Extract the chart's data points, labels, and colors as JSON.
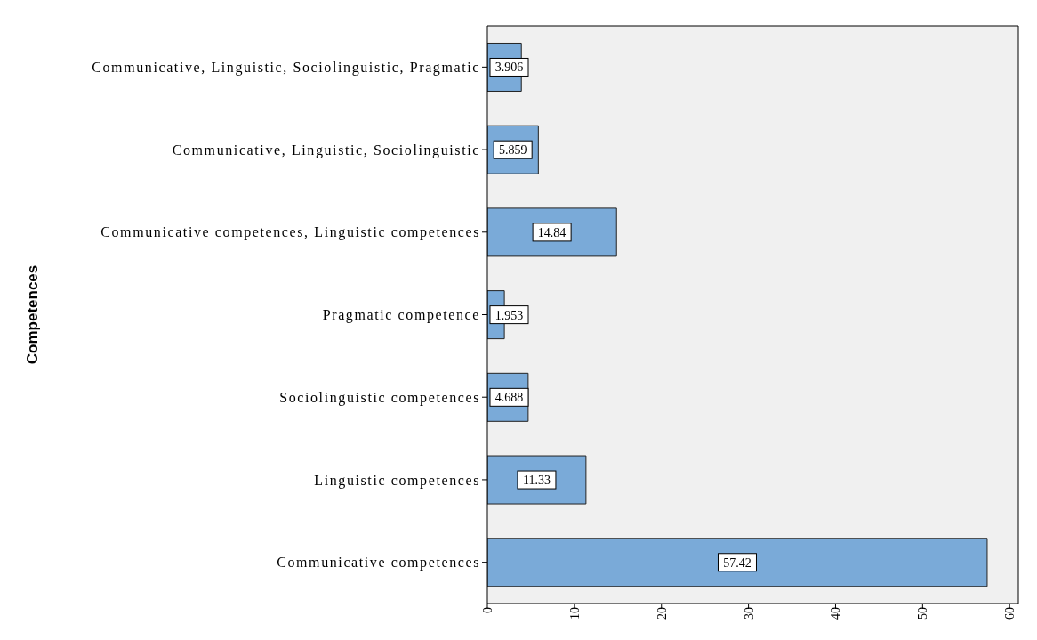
{
  "chart_data": {
    "type": "bar",
    "orientation": "horizontal",
    "ylabel": "Competences",
    "categories": [
      "Communicative, Linguistic, Sociolinguistic, Pragmatic",
      "Communicative, Linguistic, Sociolinguistic",
      "Communicative competences, Linguistic competences",
      "Pragmatic competence",
      "Sociolinguistic competences",
      "Linguistic competences",
      "Communicative competences"
    ],
    "values": [
      3.906,
      5.859,
      14.84,
      1.953,
      4.688,
      11.33,
      57.42
    ],
    "color": "#7aaad8",
    "xlim": [
      0,
      61
    ],
    "xticks": [
      0,
      10,
      20,
      30,
      40,
      50,
      60
    ],
    "data_labels": true,
    "grid": false
  }
}
